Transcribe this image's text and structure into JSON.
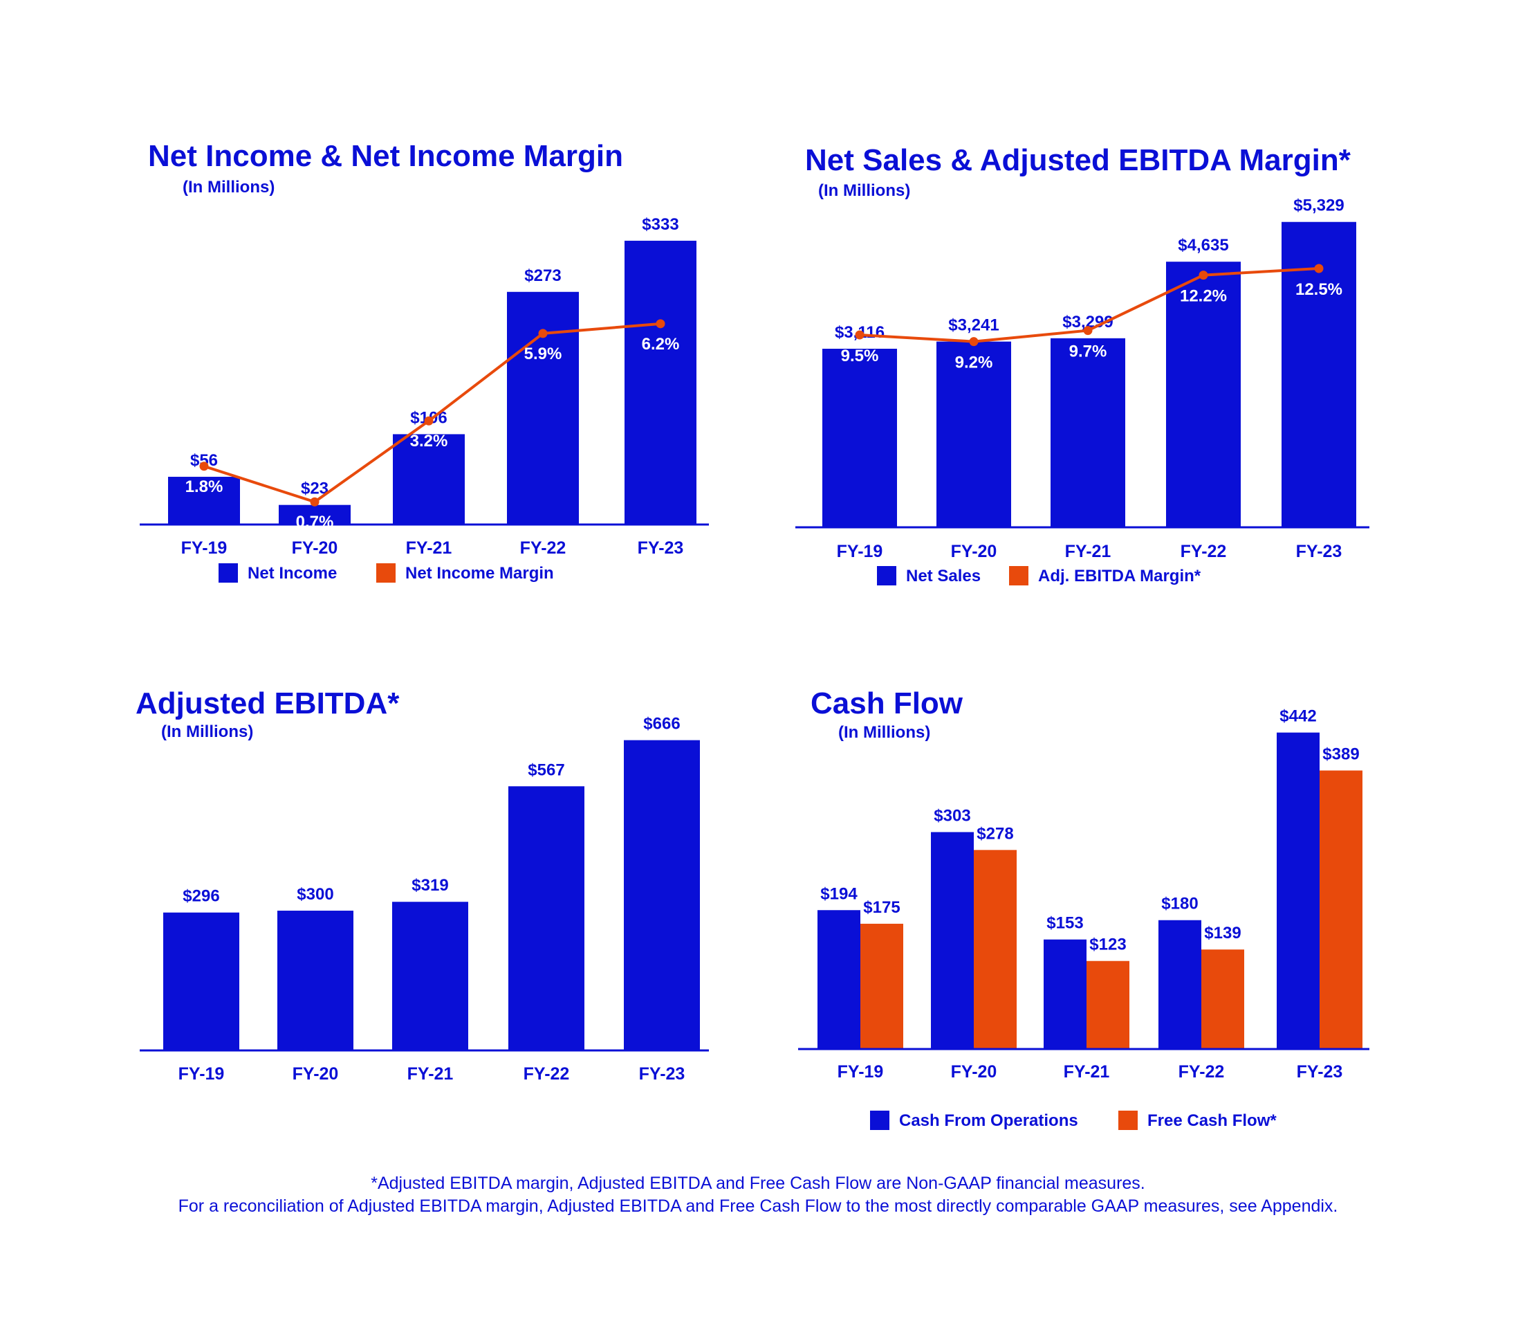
{
  "colors": {
    "primary": "#0a0fd6",
    "accent": "#e84a0c",
    "background": "#ffffff",
    "label_on_bar": "#ffffff"
  },
  "chart_data": [
    {
      "id": "net-income",
      "type": "bar",
      "title": "Net Income & Net Income Margin",
      "subtitle": "(In Millions)",
      "categories": [
        "FY-19",
        "FY-20",
        "FY-21",
        "FY-22",
        "FY-23"
      ],
      "series": [
        {
          "name": "Net Income",
          "type": "bar",
          "values": [
            56,
            23,
            106,
            273,
            333
          ],
          "labels": [
            "$56",
            "$23",
            "$106",
            "$273",
            "$333"
          ]
        },
        {
          "name": "Net Income Margin",
          "type": "line",
          "values": [
            1.8,
            0.7,
            3.2,
            5.9,
            6.2
          ],
          "labels": [
            "1.8%",
            "0.7%",
            "3.2%",
            "5.9%",
            "6.2%"
          ]
        }
      ],
      "ylim": [
        0,
        380
      ],
      "ylim_secondary": [
        0,
        10
      ],
      "legend": [
        "Net Income",
        "Net Income Margin"
      ]
    },
    {
      "id": "net-sales",
      "type": "bar",
      "title": "Net Sales & Adjusted EBITDA Margin*",
      "subtitle": "(In Millions)",
      "categories": [
        "FY-19",
        "FY-20",
        "FY-21",
        "FY-22",
        "FY-23"
      ],
      "series": [
        {
          "name": "Net Sales",
          "type": "bar",
          "values": [
            3116,
            3241,
            3299,
            4635,
            5329
          ],
          "labels": [
            "$3,116",
            "$3,241",
            "$3,299",
            "$4,635",
            "$5,329"
          ]
        },
        {
          "name": "Adj. EBITDA Margin*",
          "type": "line",
          "values": [
            9.5,
            9.2,
            9.7,
            12.2,
            12.5
          ],
          "labels": [
            "9.5%",
            "9.2%",
            "9.7%",
            "12.2%",
            "12.5%"
          ]
        }
      ],
      "ylim": [
        0,
        5700
      ],
      "ylim_secondary": [
        4,
        14
      ],
      "legend": [
        "Net Sales",
        "Adj. EBITDA Margin*"
      ]
    },
    {
      "id": "adj-ebitda",
      "type": "bar",
      "title": "Adjusted EBITDA*",
      "subtitle": "(In Millions)",
      "categories": [
        "FY-19",
        "FY-20",
        "FY-21",
        "FY-22",
        "FY-23"
      ],
      "series": [
        {
          "name": "Adjusted EBITDA",
          "type": "bar",
          "values": [
            296,
            300,
            319,
            567,
            666
          ],
          "labels": [
            "$296",
            "$300",
            "$319",
            "$567",
            "$666"
          ]
        }
      ],
      "ylim": [
        0,
        710
      ],
      "legend": []
    },
    {
      "id": "cash-flow",
      "type": "bar",
      "title": "Cash Flow",
      "subtitle": "(In Millions)",
      "categories": [
        "FY-19",
        "FY-20",
        "FY-21",
        "FY-22",
        "FY-23"
      ],
      "series": [
        {
          "name": "Cash From Operations",
          "type": "bar",
          "values": [
            194,
            303,
            153,
            180,
            442
          ],
          "labels": [
            "$194",
            "$303",
            "$153",
            "$180",
            "$442"
          ]
        },
        {
          "name": "Free Cash Flow*",
          "type": "bar",
          "values": [
            175,
            278,
            123,
            139,
            389
          ],
          "labels": [
            "$175",
            "$278",
            "$123",
            "$139",
            "$389"
          ]
        }
      ],
      "ylim": [
        0,
        460
      ],
      "legend": [
        "Cash From Operations",
        "Free Cash Flow*"
      ]
    }
  ],
  "footnote": {
    "line1": "*Adjusted EBITDA margin, Adjusted EBITDA and Free Cash Flow are Non-GAAP financial measures.",
    "line2": "For a reconciliation of Adjusted EBITDA margin, Adjusted EBITDA and Free Cash Flow to the most directly comparable GAAP measures, see Appendix."
  }
}
